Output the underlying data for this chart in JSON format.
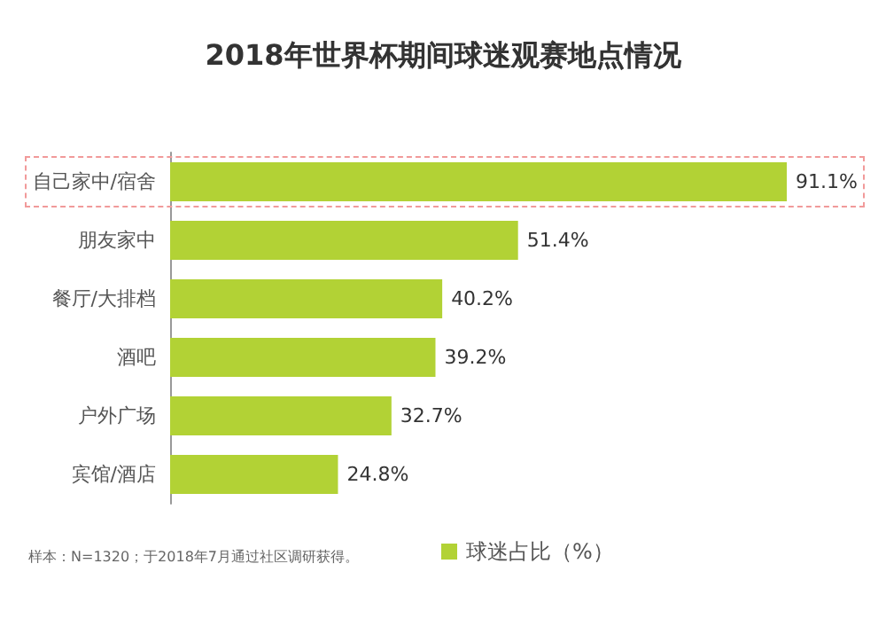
{
  "chart_data": {
    "type": "bar",
    "orientation": "horizontal",
    "title": "2018年世界杯期间球迷观赛地点情况",
    "categories": [
      "自己家中/宿舍",
      "朋友家中",
      "餐厅/大排档",
      "酒吧",
      "户外广场",
      "宾馆/酒店"
    ],
    "series": [
      {
        "name": "球迷占比（%）",
        "color": "#b2d235",
        "values": [
          91.1,
          51.4,
          40.2,
          39.2,
          32.7,
          24.8
        ],
        "value_labels": [
          "91.1%",
          "51.4%",
          "40.2%",
          "39.2%",
          "32.7%",
          "24.8%"
        ]
      }
    ],
    "legend": "bottom",
    "annotations": [
      "样本：N=1320；于2018年7月通过社区调研获得。"
    ]
  }
}
